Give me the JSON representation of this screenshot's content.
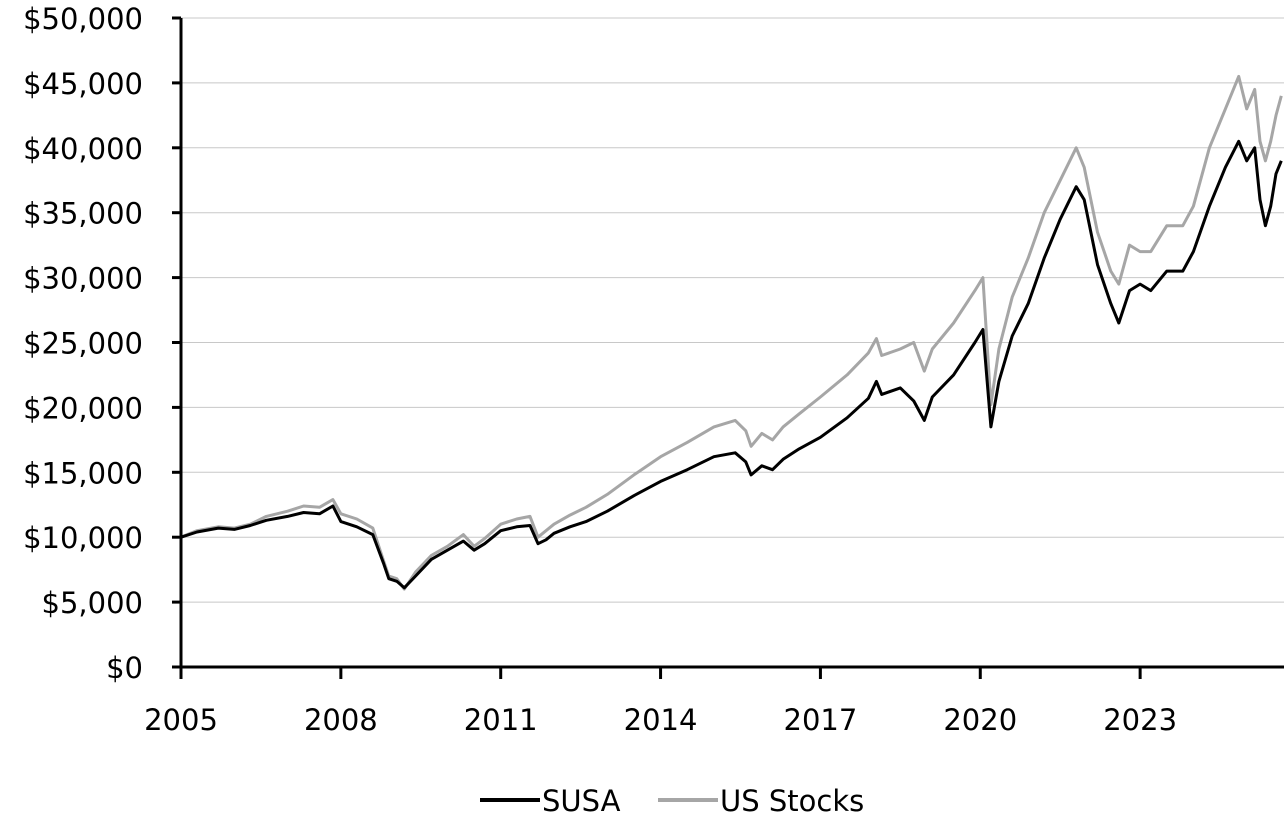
{
  "chart_data": {
    "type": "line",
    "title": "",
    "xlabel": "",
    "ylabel": "",
    "xlim": [
      2005,
      2025.7
    ],
    "ylim": [
      0,
      50000
    ],
    "x_ticks": [
      2005,
      2008,
      2011,
      2014,
      2017,
      2020,
      2023
    ],
    "x_tick_labels": [
      "2005",
      "2008",
      "2011",
      "2014",
      "2017",
      "2020",
      "2023"
    ],
    "y_ticks": [
      0,
      5000,
      10000,
      15000,
      20000,
      25000,
      30000,
      35000,
      40000,
      45000,
      50000
    ],
    "y_tick_labels": [
      "$0",
      "$5,000",
      "$10,000",
      "$15,000",
      "$20,000",
      "$25,000",
      "$30,000",
      "$35,000",
      "$40,000",
      "$45,000",
      "$50,000"
    ],
    "grid": "horizontal",
    "legend_position": "bottom-center",
    "series": [
      {
        "name": "SUSA",
        "color": "#000000",
        "x": [
          2005.0,
          2005.3,
          2005.7,
          2006.0,
          2006.3,
          2006.6,
          2007.0,
          2007.3,
          2007.6,
          2007.85,
          2008.0,
          2008.3,
          2008.6,
          2008.8,
          2008.9,
          2009.05,
          2009.19,
          2009.4,
          2009.7,
          2010.0,
          2010.3,
          2010.5,
          2010.7,
          2011.0,
          2011.3,
          2011.55,
          2011.7,
          2011.85,
          2012.0,
          2012.3,
          2012.6,
          2013.0,
          2013.5,
          2014.0,
          2014.5,
          2015.0,
          2015.4,
          2015.6,
          2015.7,
          2015.9,
          2016.1,
          2016.3,
          2016.6,
          2017.0,
          2017.5,
          2017.9,
          2018.05,
          2018.15,
          2018.5,
          2018.75,
          2018.95,
          2019.1,
          2019.5,
          2019.9,
          2020.05,
          2020.2,
          2020.35,
          2020.6,
          2020.9,
          2021.2,
          2021.5,
          2021.8,
          2021.95,
          2022.2,
          2022.45,
          2022.6,
          2022.8,
          2023.0,
          2023.2,
          2023.5,
          2023.8,
          2024.0,
          2024.3,
          2024.6,
          2024.85,
          2025.0,
          2025.15,
          2025.25,
          2025.35,
          2025.45,
          2025.55,
          2025.65
        ],
        "values": [
          10000,
          10400,
          10700,
          10600,
          10900,
          11300,
          11600,
          11900,
          11800,
          12400,
          11200,
          10800,
          10200,
          8000,
          6800,
          6600,
          6100,
          7000,
          8300,
          9000,
          9700,
          9000,
          9500,
          10500,
          10800,
          10900,
          9500,
          9800,
          10300,
          10800,
          11200,
          12000,
          13200,
          14300,
          15200,
          16200,
          16500,
          15800,
          14800,
          15500,
          15200,
          16000,
          16800,
          17700,
          19200,
          20700,
          22000,
          21000,
          21500,
          20500,
          19000,
          20800,
          22500,
          25000,
          26000,
          18500,
          22000,
          25500,
          28000,
          31500,
          34500,
          37000,
          36000,
          31000,
          28000,
          26500,
          29000,
          29500,
          29000,
          30500,
          30500,
          32000,
          35500,
          38500,
          40500,
          39000,
          40000,
          36000,
          34000,
          35500,
          38000,
          39000
        ]
      },
      {
        "name": "US Stocks",
        "color": "#a6a6a6",
        "x": [
          2005.0,
          2005.3,
          2005.7,
          2006.0,
          2006.3,
          2006.6,
          2007.0,
          2007.3,
          2007.6,
          2007.85,
          2008.0,
          2008.3,
          2008.6,
          2008.8,
          2008.9,
          2009.05,
          2009.19,
          2009.4,
          2009.7,
          2010.0,
          2010.3,
          2010.5,
          2010.7,
          2011.0,
          2011.3,
          2011.55,
          2011.7,
          2011.85,
          2012.0,
          2012.3,
          2012.6,
          2013.0,
          2013.5,
          2014.0,
          2014.5,
          2015.0,
          2015.4,
          2015.6,
          2015.7,
          2015.9,
          2016.1,
          2016.3,
          2016.6,
          2017.0,
          2017.5,
          2017.9,
          2018.05,
          2018.15,
          2018.5,
          2018.75,
          2018.95,
          2019.1,
          2019.5,
          2019.9,
          2020.05,
          2020.2,
          2020.35,
          2020.6,
          2020.9,
          2021.2,
          2021.5,
          2021.8,
          2021.95,
          2022.2,
          2022.45,
          2022.6,
          2022.8,
          2023.0,
          2023.2,
          2023.5,
          2023.8,
          2024.0,
          2024.3,
          2024.6,
          2024.85,
          2025.0,
          2025.15,
          2025.25,
          2025.35,
          2025.45,
          2025.55,
          2025.65
        ],
        "values": [
          10000,
          10500,
          10800,
          10700,
          11000,
          11600,
          12000,
          12400,
          12300,
          12900,
          11800,
          11400,
          10700,
          8200,
          7000,
          6800,
          6000,
          7300,
          8600,
          9300,
          10200,
          9300,
          9900,
          11000,
          11400,
          11600,
          10000,
          10500,
          11000,
          11700,
          12300,
          13300,
          14800,
          16200,
          17300,
          18500,
          19000,
          18200,
          17000,
          18000,
          17500,
          18500,
          19500,
          20800,
          22500,
          24200,
          25300,
          24000,
          24500,
          25000,
          22800,
          24500,
          26500,
          29000,
          30000,
          20200,
          24500,
          28500,
          31500,
          35000,
          37500,
          40000,
          38500,
          33500,
          30500,
          29500,
          32500,
          32000,
          32000,
          34000,
          34000,
          35500,
          40000,
          43000,
          45500,
          43000,
          44500,
          40500,
          39000,
          40500,
          42500,
          44000
        ]
      }
    ]
  },
  "legend": {
    "items": [
      {
        "label": "SUSA",
        "color": "#000000"
      },
      {
        "label": "US Stocks",
        "color": "#a6a6a6"
      }
    ]
  }
}
